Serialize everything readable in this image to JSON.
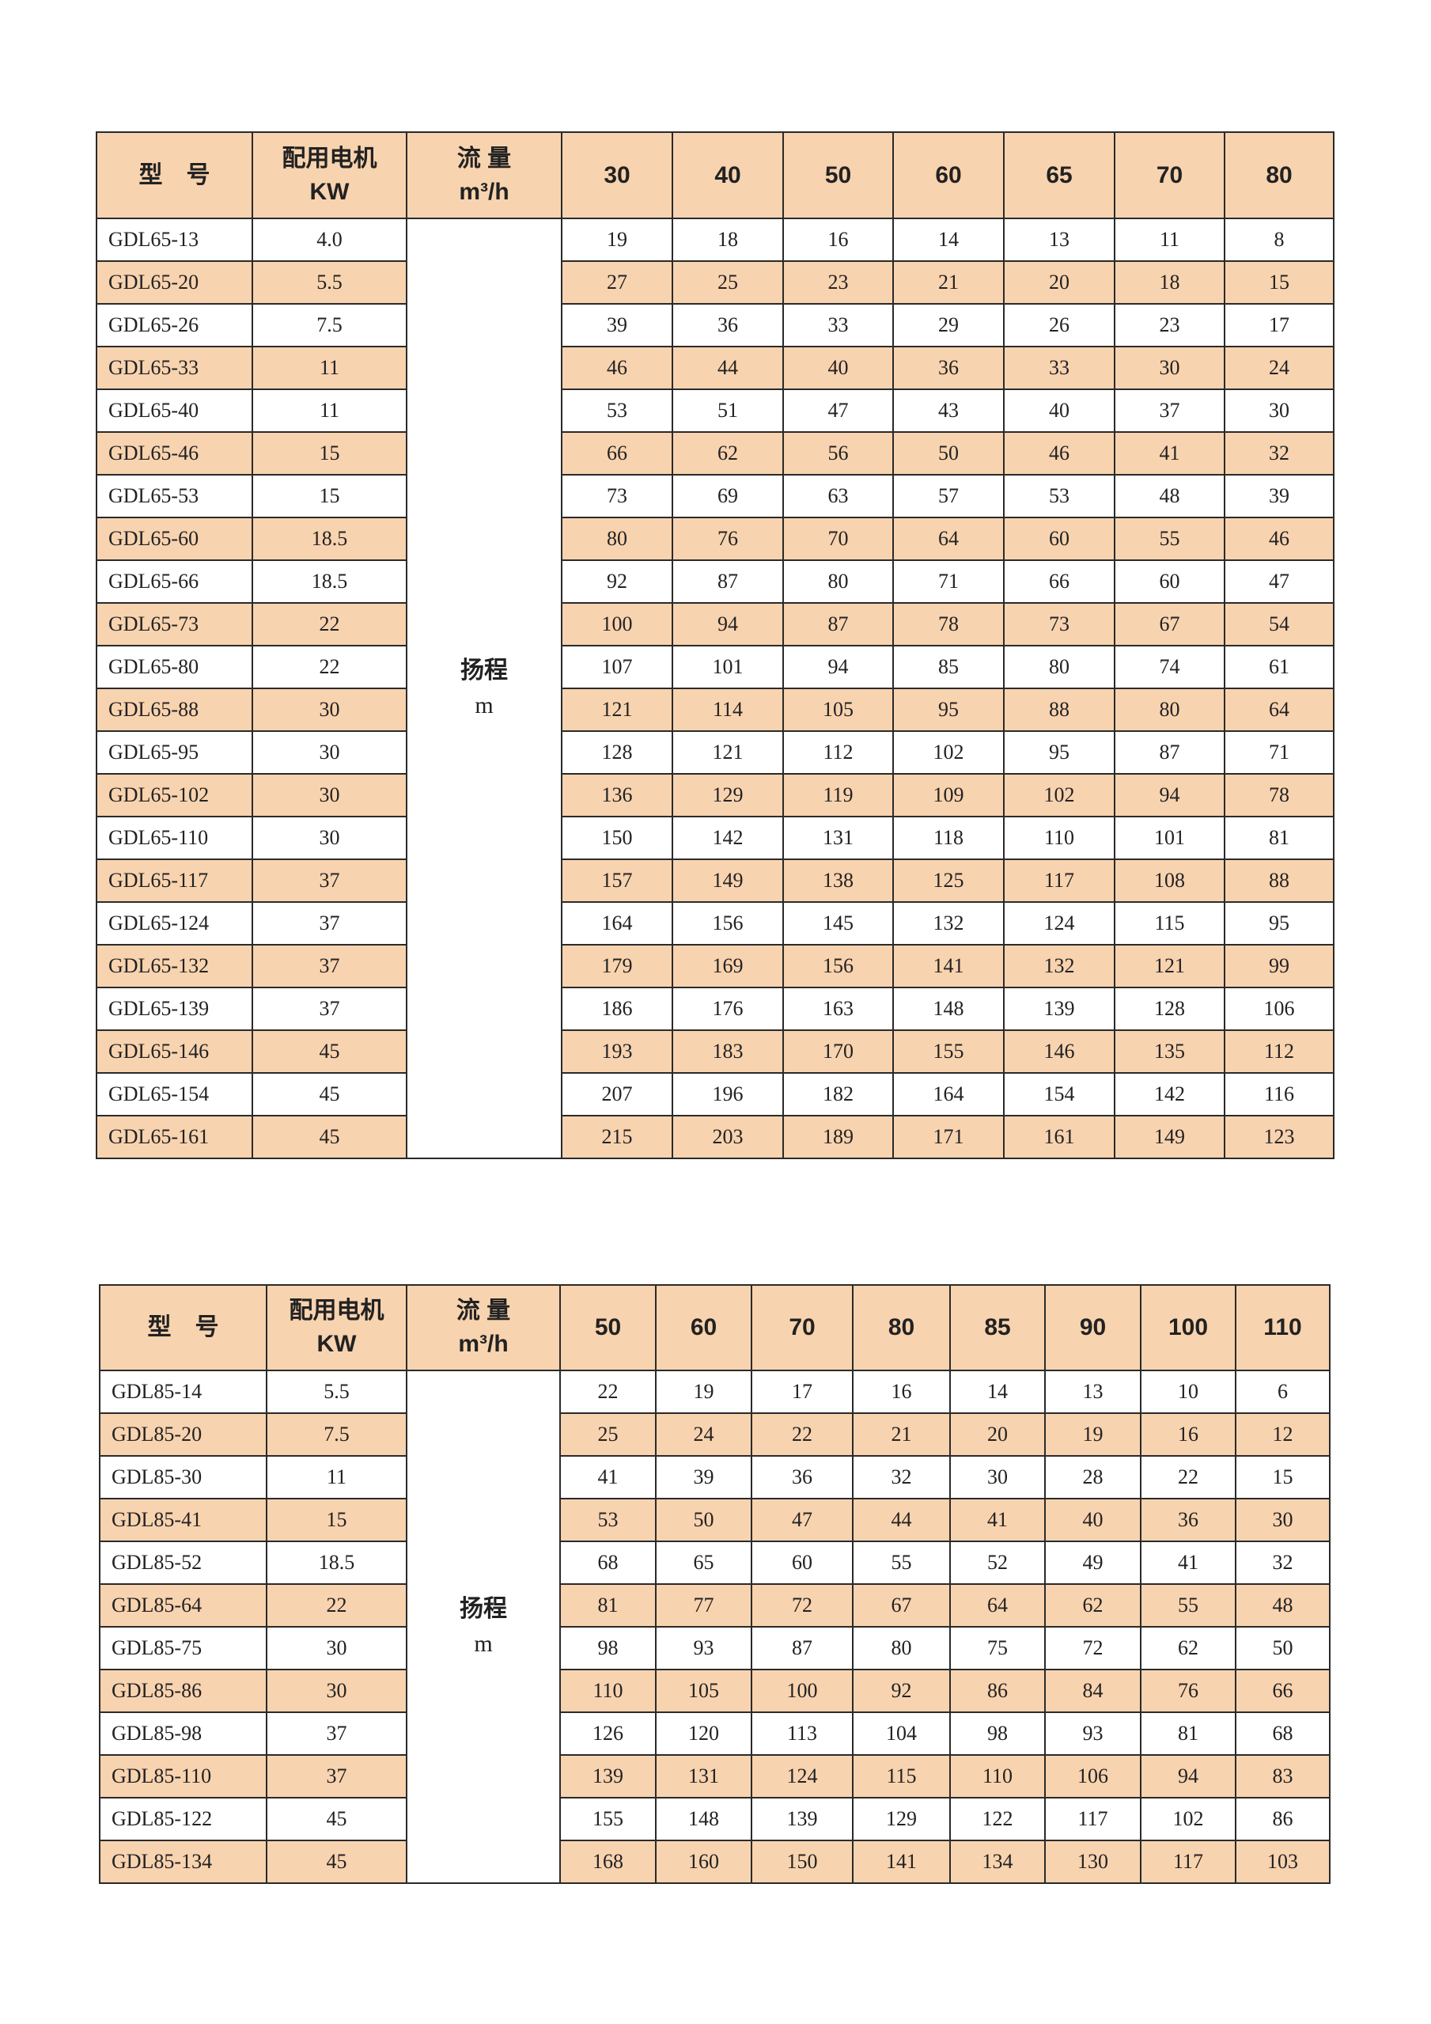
{
  "colors": {
    "stripe": "#f8d3af",
    "border": "#2a2a2a"
  },
  "header": {
    "model": "型　号",
    "motor": "配用电机",
    "motor_unit": "KW",
    "flow": "流 量",
    "flow_unit": "m³/h",
    "head": "扬程",
    "head_unit": "m"
  },
  "tables": [
    {
      "flows": [
        "30",
        "40",
        "50",
        "60",
        "65",
        "70",
        "80"
      ],
      "rows": [
        [
          "GDL65-13",
          "4.0",
          [
            "19",
            "18",
            "16",
            "14",
            "13",
            "11",
            "8"
          ]
        ],
        [
          "GDL65-20",
          "5.5",
          [
            "27",
            "25",
            "23",
            "21",
            "20",
            "18",
            "15"
          ]
        ],
        [
          "GDL65-26",
          "7.5",
          [
            "39",
            "36",
            "33",
            "29",
            "26",
            "23",
            "17"
          ]
        ],
        [
          "GDL65-33",
          "11",
          [
            "46",
            "44",
            "40",
            "36",
            "33",
            "30",
            "24"
          ]
        ],
        [
          "GDL65-40",
          "11",
          [
            "53",
            "51",
            "47",
            "43",
            "40",
            "37",
            "30"
          ]
        ],
        [
          "GDL65-46",
          "15",
          [
            "66",
            "62",
            "56",
            "50",
            "46",
            "41",
            "32"
          ]
        ],
        [
          "GDL65-53",
          "15",
          [
            "73",
            "69",
            "63",
            "57",
            "53",
            "48",
            "39"
          ]
        ],
        [
          "GDL65-60",
          "18.5",
          [
            "80",
            "76",
            "70",
            "64",
            "60",
            "55",
            "46"
          ]
        ],
        [
          "GDL65-66",
          "18.5",
          [
            "92",
            "87",
            "80",
            "71",
            "66",
            "60",
            "47"
          ]
        ],
        [
          "GDL65-73",
          "22",
          [
            "100",
            "94",
            "87",
            "78",
            "73",
            "67",
            "54"
          ]
        ],
        [
          "GDL65-80",
          "22",
          [
            "107",
            "101",
            "94",
            "85",
            "80",
            "74",
            "61"
          ]
        ],
        [
          "GDL65-88",
          "30",
          [
            "121",
            "114",
            "105",
            "95",
            "88",
            "80",
            "64"
          ]
        ],
        [
          "GDL65-95",
          "30",
          [
            "128",
            "121",
            "112",
            "102",
            "95",
            "87",
            "71"
          ]
        ],
        [
          "GDL65-102",
          "30",
          [
            "136",
            "129",
            "119",
            "109",
            "102",
            "94",
            "78"
          ]
        ],
        [
          "GDL65-110",
          "30",
          [
            "150",
            "142",
            "131",
            "118",
            "110",
            "101",
            "81"
          ]
        ],
        [
          "GDL65-117",
          "37",
          [
            "157",
            "149",
            "138",
            "125",
            "117",
            "108",
            "88"
          ]
        ],
        [
          "GDL65-124",
          "37",
          [
            "164",
            "156",
            "145",
            "132",
            "124",
            "115",
            "95"
          ]
        ],
        [
          "GDL65-132",
          "37",
          [
            "179",
            "169",
            "156",
            "141",
            "132",
            "121",
            "99"
          ]
        ],
        [
          "GDL65-139",
          "37",
          [
            "186",
            "176",
            "163",
            "148",
            "139",
            "128",
            "106"
          ]
        ],
        [
          "GDL65-146",
          "45",
          [
            "193",
            "183",
            "170",
            "155",
            "146",
            "135",
            "112"
          ]
        ],
        [
          "GDL65-154",
          "45",
          [
            "207",
            "196",
            "182",
            "164",
            "154",
            "142",
            "116"
          ]
        ],
        [
          "GDL65-161",
          "45",
          [
            "215",
            "203",
            "189",
            "171",
            "161",
            "149",
            "123"
          ]
        ]
      ]
    },
    {
      "flows": [
        "50",
        "60",
        "70",
        "80",
        "85",
        "90",
        "100",
        "110"
      ],
      "rows": [
        [
          "GDL85-14",
          "5.5",
          [
            "22",
            "19",
            "17",
            "16",
            "14",
            "13",
            "10",
            "6"
          ]
        ],
        [
          "GDL85-20",
          "7.5",
          [
            "25",
            "24",
            "22",
            "21",
            "20",
            "19",
            "16",
            "12"
          ]
        ],
        [
          "GDL85-30",
          "11",
          [
            "41",
            "39",
            "36",
            "32",
            "30",
            "28",
            "22",
            "15"
          ]
        ],
        [
          "GDL85-41",
          "15",
          [
            "53",
            "50",
            "47",
            "44",
            "41",
            "40",
            "36",
            "30"
          ]
        ],
        [
          "GDL85-52",
          "18.5",
          [
            "68",
            "65",
            "60",
            "55",
            "52",
            "49",
            "41",
            "32"
          ]
        ],
        [
          "GDL85-64",
          "22",
          [
            "81",
            "77",
            "72",
            "67",
            "64",
            "62",
            "55",
            "48"
          ]
        ],
        [
          "GDL85-75",
          "30",
          [
            "98",
            "93",
            "87",
            "80",
            "75",
            "72",
            "62",
            "50"
          ]
        ],
        [
          "GDL85-86",
          "30",
          [
            "110",
            "105",
            "100",
            "92",
            "86",
            "84",
            "76",
            "66"
          ]
        ],
        [
          "GDL85-98",
          "37",
          [
            "126",
            "120",
            "113",
            "104",
            "98",
            "93",
            "81",
            "68"
          ]
        ],
        [
          "GDL85-110",
          "37",
          [
            "139",
            "131",
            "124",
            "115",
            "110",
            "106",
            "94",
            "83"
          ]
        ],
        [
          "GDL85-122",
          "45",
          [
            "155",
            "148",
            "139",
            "129",
            "122",
            "117",
            "102",
            "86"
          ]
        ],
        [
          "GDL85-134",
          "45",
          [
            "168",
            "160",
            "150",
            "141",
            "134",
            "130",
            "117",
            "103"
          ]
        ]
      ]
    }
  ]
}
